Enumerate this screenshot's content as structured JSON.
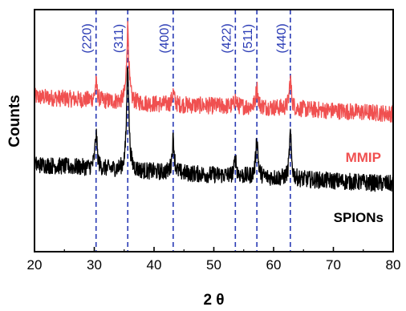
{
  "chart_data": {
    "type": "line",
    "xlabel": "2 θ",
    "ylabel": "Counts",
    "xlim": [
      20,
      80
    ],
    "ylim": [
      0,
      100
    ],
    "xticks": [
      "20",
      "30",
      "40",
      "50",
      "60",
      "70",
      "80"
    ],
    "yticks_shown": false,
    "grid": false,
    "colors": {
      "MMIP": "#f05050",
      "SPIONs": "#000000",
      "reference_lines": "#2a3bb5"
    },
    "reference_peaks": [
      {
        "label": "(220)",
        "x": 30.3
      },
      {
        "label": "(311)",
        "x": 35.6
      },
      {
        "label": "(400)",
        "x": 43.2
      },
      {
        "label": "(422)",
        "x": 53.6
      },
      {
        "label": "(511)",
        "x": 57.2
      },
      {
        "label": "(440)",
        "x": 62.8
      }
    ],
    "series": [
      {
        "name": "MMIP",
        "color": "#f05050",
        "baseline": [
          [
            20,
            64
          ],
          [
            40,
            61
          ],
          [
            60,
            59.5
          ],
          [
            80,
            57
          ]
        ],
        "peaks": [
          [
            30.3,
            7
          ],
          [
            35.6,
            31
          ],
          [
            43.2,
            5
          ],
          [
            53.6,
            3
          ],
          [
            57.2,
            8
          ],
          [
            62.8,
            12
          ]
        ]
      },
      {
        "name": "SPIONs",
        "color": "#000000",
        "baseline": [
          [
            20,
            36
          ],
          [
            40,
            33
          ],
          [
            60,
            30.5
          ],
          [
            80,
            28
          ]
        ],
        "peaks": [
          [
            30.3,
            14
          ],
          [
            35.6,
            45
          ],
          [
            43.2,
            14
          ],
          [
            53.6,
            7
          ],
          [
            57.2,
            16
          ],
          [
            62.8,
            18
          ]
        ]
      }
    ]
  }
}
